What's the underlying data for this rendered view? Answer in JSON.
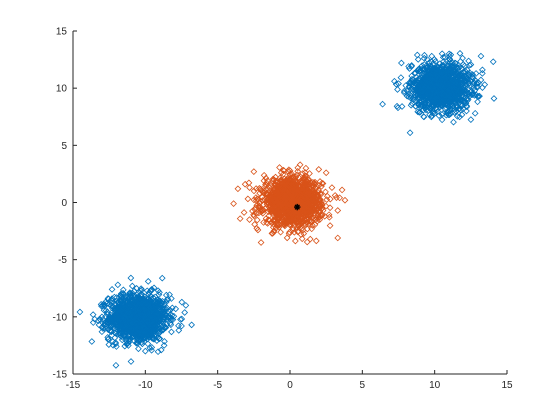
{
  "chart_data": {
    "type": "scatter",
    "title": "",
    "xlabel": "",
    "ylabel": "",
    "xlim": [
      -15,
      15
    ],
    "ylim": [
      -15,
      15
    ],
    "xticks": [
      -15,
      -10,
      -5,
      0,
      5,
      10,
      15
    ],
    "yticks": [
      -15,
      -10,
      -5,
      0,
      5,
      10,
      15
    ],
    "grid": false,
    "legend": "none",
    "marker": "diamond-open",
    "series": [
      {
        "color": "#0072BD",
        "points": [
          [
            -10.2,
            -9.9
          ],
          [
            -11.3,
            -10.6
          ],
          [
            -9.1,
            -9.2
          ],
          [
            -10.8,
            -8.7
          ],
          [
            -9.6,
            -11.2
          ],
          [
            -12.1,
            -9.8
          ],
          [
            -8.4,
            -10.1
          ],
          [
            -10.5,
            -12.3
          ],
          [
            -11.7,
            -8.1
          ],
          [
            -9.0,
            -11.9
          ],
          [
            -13.2,
            -10.7
          ],
          [
            -7.9,
            -9.3
          ],
          [
            -12.6,
            -11.8
          ],
          [
            -10.9,
            -7.3
          ],
          [
            -8.7,
            -12.5
          ],
          [
            -11.9,
            -7.2
          ],
          [
            -7.5,
            -10.8
          ],
          [
            -13.5,
            -10.2
          ],
          [
            -10.0,
            -13.0
          ],
          [
            -12.0,
            -12.6
          ],
          [
            -6.8,
            -10.7
          ],
          [
            -9.8,
            -6.9
          ],
          [
            -12.8,
            -9.0
          ],
          [
            -8.2,
            -8.4
          ],
          [
            -11.1,
            -11.5
          ],
          [
            -10.3,
            -10.2
          ],
          [
            -9.4,
            -10.6
          ],
          [
            -10.7,
            -9.5
          ],
          [
            -11.5,
            -10.1
          ],
          [
            -9.9,
            -9.7
          ],
          [
            -7.2,
            -9.0
          ],
          [
            -13.0,
            -11.3
          ],
          [
            -12.3,
            -7.6
          ],
          [
            -8.9,
            -12.9
          ],
          [
            -11.0,
            -6.6
          ],
          [
            -13.6,
            -10.5
          ]
        ]
      },
      {
        "color": "#0072BD",
        "points": [
          [
            10.1,
            10.2
          ],
          [
            9.2,
            9.1
          ],
          [
            11.3,
            10.7
          ],
          [
            10.8,
            8.6
          ],
          [
            9.5,
            11.5
          ],
          [
            12.0,
            9.6
          ],
          [
            8.4,
            10.3
          ],
          [
            10.6,
            12.3
          ],
          [
            11.8,
            8.1
          ],
          [
            8.9,
            8.5
          ],
          [
            12.6,
            11.0
          ],
          [
            7.9,
            9.6
          ],
          [
            9.8,
            12.8
          ],
          [
            12.9,
            10.1
          ],
          [
            8.2,
            11.9
          ],
          [
            11.4,
            12.2
          ],
          [
            10.3,
            7.6
          ],
          [
            13.1,
            9.3
          ],
          [
            7.5,
            10.4
          ],
          [
            9.0,
            7.9
          ],
          [
            12.2,
            8.0
          ],
          [
            6.4,
            8.6
          ],
          [
            8.3,
            6.1
          ],
          [
            12.8,
            7.8
          ],
          [
            13.3,
            11.6
          ],
          [
            14.1,
            9.1
          ],
          [
            7.7,
            12.2
          ],
          [
            11.0,
            13.0
          ],
          [
            9.6,
            10.4
          ],
          [
            10.7,
            9.4
          ],
          [
            10.0,
            11.0
          ],
          [
            11.1,
            9.9
          ],
          [
            8.8,
            12.9
          ],
          [
            13.2,
            12.8
          ]
        ]
      },
      {
        "color": "#D95319",
        "points": [
          [
            0.1,
            0.0
          ],
          [
            -0.9,
            0.8
          ],
          [
            1.2,
            -0.6
          ],
          [
            0.6,
            1.4
          ],
          [
            -1.5,
            -0.8
          ],
          [
            1.9,
            0.7
          ],
          [
            -0.4,
            -1.9
          ],
          [
            0.9,
            2.1
          ],
          [
            -2.2,
            0.3
          ],
          [
            2.4,
            -1.2
          ],
          [
            -1.8,
            1.9
          ],
          [
            1.5,
            -2.3
          ],
          [
            -0.6,
            2.6
          ],
          [
            2.9,
            1.3
          ],
          [
            -2.8,
            -1.5
          ],
          [
            0.3,
            -2.6
          ],
          [
            -3.1,
            1.6
          ],
          [
            3.3,
            -0.7
          ],
          [
            1.1,
            3.0
          ],
          [
            -1.2,
            -2.7
          ],
          [
            3.6,
            1.1
          ],
          [
            -3.9,
            -0.1
          ],
          [
            2.5,
            2.6
          ],
          [
            -2.5,
            2.7
          ],
          [
            3.3,
            -3.1
          ],
          [
            1.4,
            -3.2
          ],
          [
            -2.0,
            -3.5
          ],
          [
            -3.6,
            1.2
          ],
          [
            0.7,
            3.3
          ],
          [
            3.8,
            0.2
          ],
          [
            -0.3,
            0.4
          ],
          [
            0.8,
            -0.3
          ],
          [
            -1.1,
            0.1
          ],
          [
            1.6,
            0.3
          ],
          [
            -0.2,
            -0.9
          ]
        ]
      }
    ],
    "centroid": {
      "x": 0.5,
      "y": -0.4,
      "color": "#000000",
      "marker": "star"
    }
  }
}
